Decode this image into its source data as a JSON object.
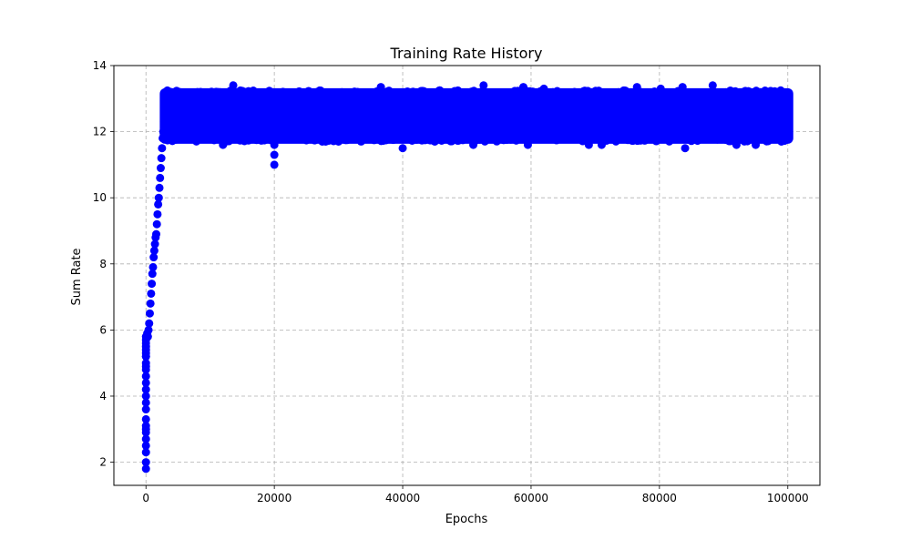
{
  "chart_data": {
    "type": "scatter",
    "title": "Training Rate History",
    "xlabel": "Epochs",
    "ylabel": "Sum Rate",
    "xlim": [
      -5000,
      105000
    ],
    "ylim": [
      1.3,
      14.0
    ],
    "x_ticks": [
      0,
      20000,
      40000,
      60000,
      80000,
      100000
    ],
    "x_tick_labels": [
      "0",
      "20000",
      "40000",
      "60000",
      "80000",
      "100000"
    ],
    "y_ticks": [
      2,
      4,
      6,
      8,
      10,
      12,
      14
    ],
    "y_tick_labels": [
      "2",
      "4",
      "6",
      "8",
      "10",
      "12",
      "14"
    ],
    "grid": true,
    "marker_color": "#0000ff",
    "marker": "circle",
    "series": [
      {
        "x": [
          0,
          0,
          0,
          0,
          0,
          0,
          0,
          0,
          0,
          0,
          0,
          0,
          0,
          0,
          0,
          0,
          0,
          0,
          0,
          0,
          0,
          0,
          0,
          0,
          0,
          0,
          200,
          300,
          400,
          500,
          600,
          700,
          800,
          900,
          1000,
          1100,
          1200,
          1300,
          1400,
          1500,
          1600,
          1700,
          1800,
          1900,
          2000,
          2100,
          2200,
          2300,
          2400,
          2500,
          2600,
          2700,
          2800,
          2900,
          3000,
          3100,
          3200,
          3300,
          3300,
          3400,
          3400,
          3500,
          3500,
          3600,
          3600,
          3700,
          3700,
          3800,
          3800,
          3900,
          3900,
          4000,
          4000,
          4500,
          4500,
          5000,
          5000,
          20000,
          20000,
          20000,
          20000,
          40000,
          84000,
          5200,
          13600,
          36600,
          52600,
          58800,
          62000,
          76500,
          80200,
          83600,
          88300,
          12000,
          28000,
          51000,
          59500,
          71000,
          92000,
          99000,
          95000,
          30000,
          69000,
          45000
        ],
        "y": [
          1.8,
          2.0,
          2.3,
          2.5,
          2.7,
          2.9,
          3.1,
          3.3,
          3.6,
          3.8,
          4.0,
          4.2,
          4.4,
          4.6,
          4.8,
          5.0,
          5.2,
          5.3,
          5.4,
          5.5,
          5.6,
          5.7,
          5.8,
          5.2,
          4.9,
          3.0,
          5.9,
          5.8,
          6.0,
          6.2,
          6.5,
          6.8,
          7.1,
          7.4,
          7.7,
          7.9,
          8.2,
          8.4,
          8.6,
          8.8,
          8.9,
          9.2,
          9.5,
          9.8,
          10.0,
          10.3,
          10.6,
          10.9,
          11.2,
          11.5,
          11.8,
          12.0,
          12.3,
          12.6,
          12.8,
          13.0,
          13.1,
          11.9,
          13.1,
          11.8,
          13.0,
          11.8,
          13.1,
          11.9,
          13.0,
          11.8,
          13.1,
          11.8,
          13.0,
          11.9,
          13.1,
          11.8,
          13.0,
          11.8,
          13.1,
          11.8,
          13.1,
          11.0,
          11.3,
          11.6,
          11.8,
          11.5,
          11.5,
          13.2,
          13.4,
          13.35,
          13.4,
          13.35,
          13.3,
          13.35,
          13.3,
          13.35,
          13.4,
          11.6,
          11.7,
          11.6,
          11.6,
          11.6,
          11.6,
          11.7,
          11.6,
          11.7,
          11.6,
          11.7
        ]
      }
    ],
    "dense_band": {
      "x_range": [
        3000,
        100000
      ],
      "y_range": [
        11.8,
        13.15
      ]
    }
  }
}
